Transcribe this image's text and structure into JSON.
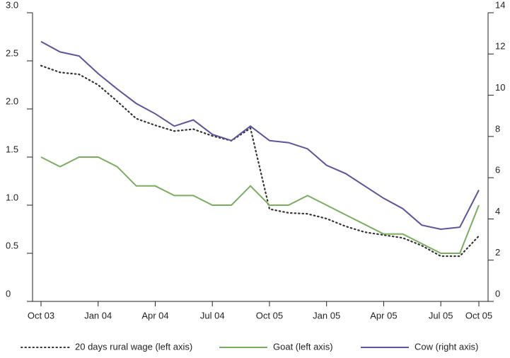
{
  "chart_data": {
    "type": "line",
    "categories": [
      "Oct 03",
      null,
      null,
      "Jan 04",
      null,
      null,
      "Apr 04",
      null,
      null,
      "Jul 04",
      null,
      null,
      "Oct 05",
      null,
      null,
      "Jan 05",
      null,
      null,
      "Apr 05",
      null,
      null,
      "Jul 05",
      null,
      "Oct 05"
    ],
    "series": [
      {
        "name": "20 days rural wage (left axis)",
        "color": "#333333",
        "dash": "dotted",
        "axis": "y",
        "values": [
          2.45,
          2.38,
          2.36,
          2.25,
          2.08,
          1.9,
          1.83,
          1.77,
          1.79,
          1.72,
          1.67,
          1.8,
          0.96,
          0.92,
          0.91,
          0.86,
          0.78,
          0.72,
          0.69,
          0.66,
          0.58,
          0.47,
          0.47,
          0.68
        ]
      },
      {
        "name": "Goat (left axis)",
        "color": "#7aae5f",
        "axis": "y",
        "values": [
          1.5,
          1.4,
          1.5,
          1.5,
          1.4,
          1.2,
          1.2,
          1.1,
          1.1,
          1.0,
          1.0,
          1.2,
          1.0,
          1.0,
          1.1,
          1.0,
          0.9,
          0.8,
          0.7,
          0.7,
          0.6,
          0.5,
          0.5,
          1.0
        ]
      },
      {
        "name": "Cow (right axis)",
        "color": "#5b55a0",
        "axis": "y2",
        "values": [
          12.6,
          12.1,
          11.9,
          11.05,
          10.3,
          9.6,
          9.1,
          8.5,
          8.8,
          8.1,
          7.8,
          8.5,
          7.8,
          7.7,
          7.4,
          6.6,
          6.2,
          5.6,
          5.0,
          4.5,
          3.7,
          3.5,
          3.6,
          5.4
        ]
      }
    ],
    "ylim": [
      0,
      3
    ],
    "yticks": [
      0,
      0.5,
      {
        "value": 1,
        "label": "1.0"
      },
      1.5,
      {
        "value": 2,
        "label": "2.0"
      },
      2.5,
      {
        "value": 3,
        "label": "3.0"
      }
    ],
    "y2lim": [
      0,
      14
    ],
    "y2ticks": [
      0,
      2,
      4,
      6,
      8,
      10,
      12,
      14
    ],
    "legend": "bottom"
  }
}
